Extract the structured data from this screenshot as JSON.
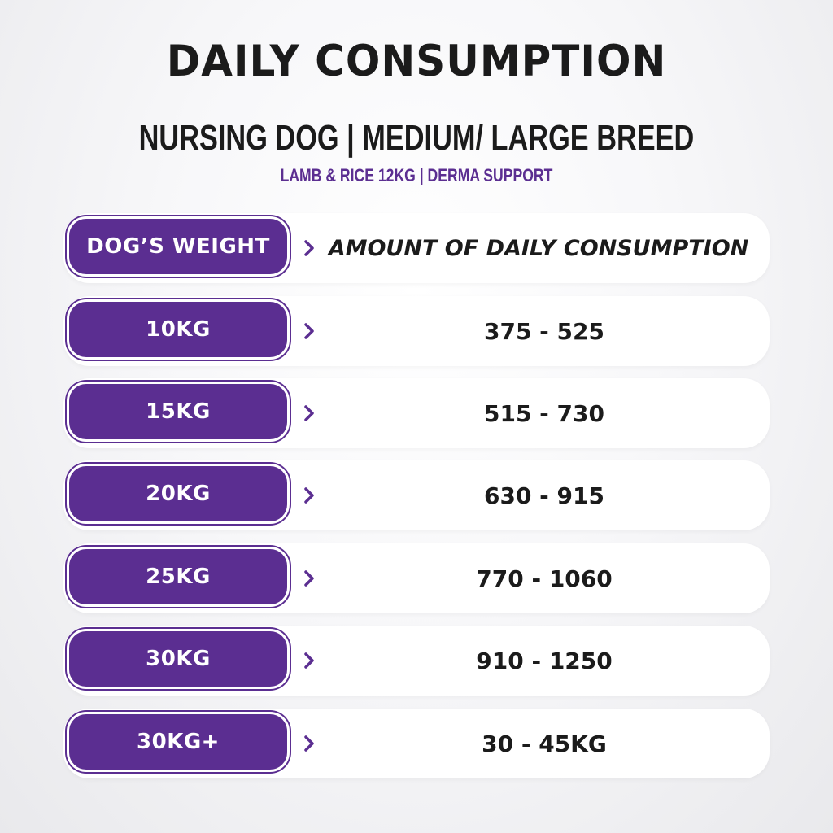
{
  "title": "DAILY CONSUMPTION",
  "subtitle": "NURSING DOG | MEDIUM/ LARGE BREED",
  "product_line": "LAMB & RICE 12KG | DERMA SUPPORT",
  "colors": {
    "accent": "#5b2e91",
    "text": "#1b1b1b",
    "row_background": "#ffffff"
  },
  "icons": {
    "row_arrow": "chevron-right-icon"
  },
  "table": {
    "header": {
      "weight_label": "DOG’S WEIGHT",
      "amount_label": "AMOUNT OF DAILY CONSUMPTION"
    },
    "rows": [
      {
        "weight": "10KG",
        "amount": "375 - 525"
      },
      {
        "weight": "15KG",
        "amount": "515 - 730"
      },
      {
        "weight": "20KG",
        "amount": "630 - 915"
      },
      {
        "weight": "25KG",
        "amount": "770 - 1060"
      },
      {
        "weight": "30KG",
        "amount": "910 - 1250"
      },
      {
        "weight": "30KG+",
        "amount": "30 - 45KG"
      }
    ]
  }
}
